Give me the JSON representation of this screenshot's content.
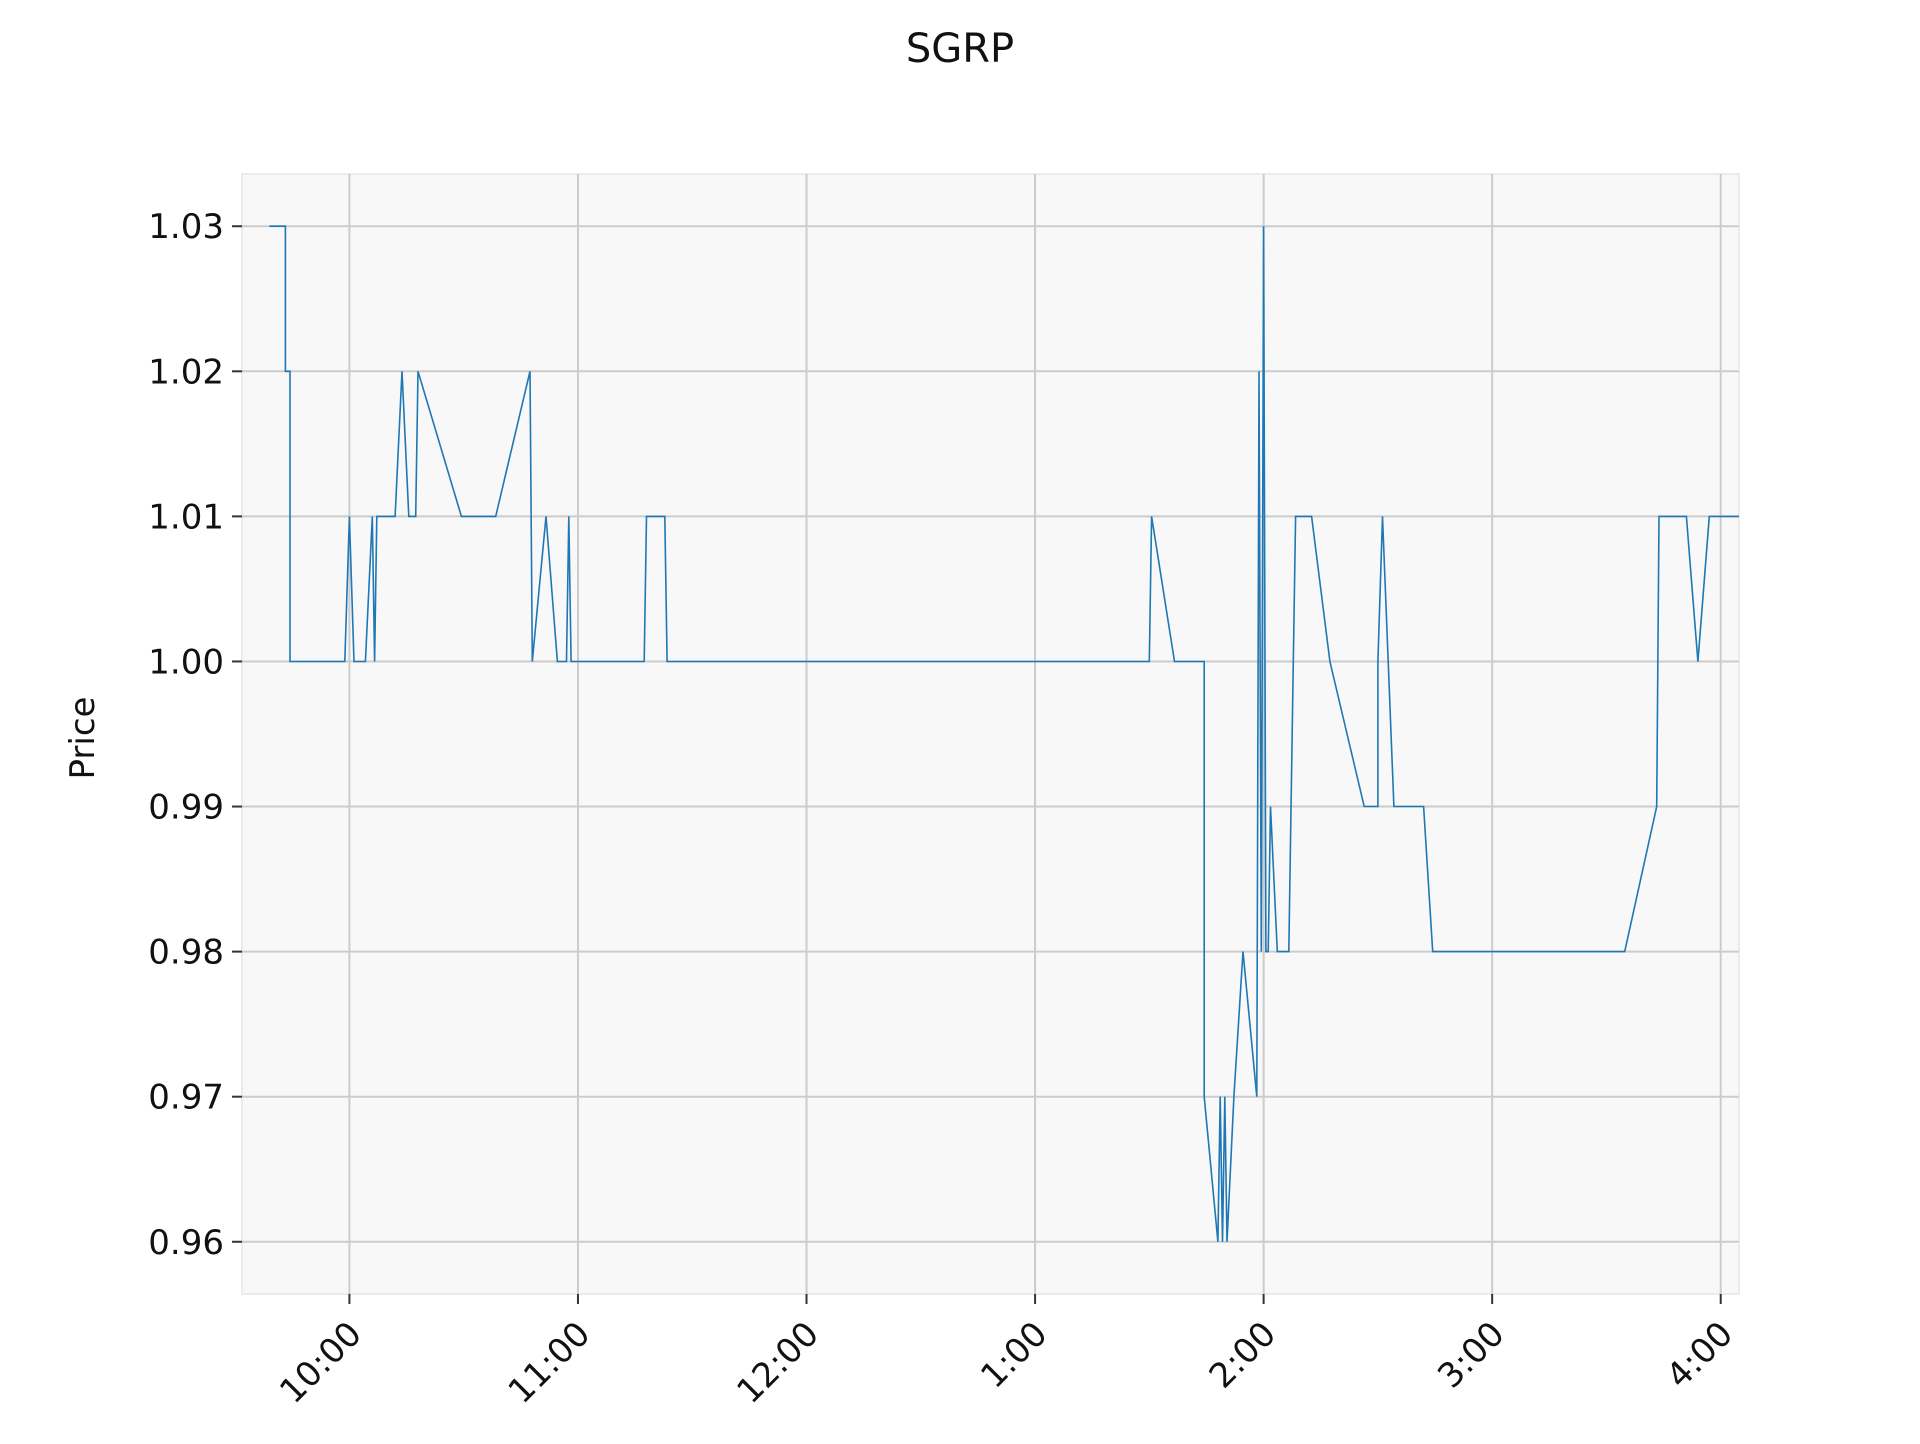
{
  "chart_data": {
    "type": "line",
    "title": "SGRP",
    "xlabel": "",
    "ylabel": "Price",
    "grid": true,
    "xlim": [
      9.53,
      16.08
    ],
    "ylim": [
      0.9564,
      1.0336
    ],
    "x_ticks": [
      {
        "value": 10,
        "label": "10:00"
      },
      {
        "value": 11,
        "label": "11:00"
      },
      {
        "value": 12,
        "label": "12:00"
      },
      {
        "value": 13,
        "label": "1:00"
      },
      {
        "value": 14,
        "label": "2:00"
      },
      {
        "value": 15,
        "label": "3:00"
      },
      {
        "value": 16,
        "label": "4:00"
      }
    ],
    "y_ticks": [
      0.96,
      0.97,
      0.98,
      0.99,
      1.0,
      1.01,
      1.02,
      1.03
    ],
    "y_tick_labels": [
      "0.96",
      "0.97",
      "0.98",
      "0.99",
      "1.00",
      "1.01",
      "1.02",
      "1.03"
    ],
    "colors": {
      "line": "#1f77b4",
      "plot_bg": "#f8f8f8",
      "grid": "#cccccc"
    },
    "series": [
      {
        "x": [
          9.65,
          9.72,
          9.72,
          9.74,
          9.74,
          9.78,
          9.98,
          10.0,
          10.02,
          10.07,
          10.1,
          10.11,
          10.12,
          10.13,
          10.2,
          10.23,
          10.26,
          10.29,
          10.3,
          10.49,
          10.64,
          10.79,
          10.8,
          10.86,
          10.91,
          10.95,
          10.96,
          10.97,
          10.98,
          11.29,
          11.3,
          11.38,
          11.39,
          13.5,
          13.51,
          13.61,
          13.74,
          13.74,
          13.8,
          13.81,
          13.82,
          13.83,
          13.84,
          13.87,
          13.91,
          13.97,
          13.98,
          13.99,
          14.0,
          14.01,
          14.02,
          14.03,
          14.06,
          14.11,
          14.13,
          14.14,
          14.21,
          14.29,
          14.44,
          14.5,
          14.5,
          14.52,
          14.57,
          14.64,
          14.7,
          14.74,
          15.58,
          15.72,
          15.73,
          15.85,
          15.9,
          15.95,
          15.98,
          16.08
        ],
        "y": [
          1.03,
          1.03,
          1.02,
          1.02,
          1.0,
          1.0,
          1.0,
          1.01,
          1.0,
          1.0,
          1.01,
          1.0,
          1.01,
          1.01,
          1.01,
          1.02,
          1.01,
          1.01,
          1.02,
          1.01,
          1.01,
          1.02,
          1.0,
          1.01,
          1.0,
          1.0,
          1.01,
          1.0,
          1.0,
          1.0,
          1.01,
          1.01,
          1.0,
          1.0,
          1.01,
          1.0,
          1.0,
          0.97,
          0.96,
          0.97,
          0.96,
          0.97,
          0.96,
          0.97,
          0.98,
          0.97,
          1.02,
          0.98,
          1.03,
          0.98,
          0.98,
          0.99,
          0.98,
          0.98,
          1.0,
          1.01,
          1.01,
          1.0,
          0.99,
          0.99,
          1.0,
          1.01,
          0.99,
          0.99,
          0.99,
          0.98,
          0.98,
          0.99,
          1.01,
          1.01,
          1.0,
          1.01,
          1.01,
          1.01
        ]
      }
    ]
  }
}
